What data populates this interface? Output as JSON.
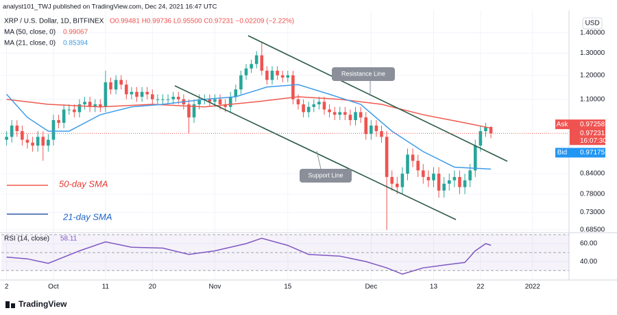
{
  "header": "analyst101_TWJ published on TradingView.com, Dec 24, 2021 16:47 UTC",
  "footer": "TradingView",
  "chart_data": [
    {
      "type": "candlestick",
      "symbol": "XRP / U.S. Dollar, 1D, BITFINEX",
      "ohlc_legend": "O0.99481 H0.99736 L0.95500 C0.97231 −0.02209 (−2.22%)",
      "currency": "USD",
      "log_scale": true,
      "grid": true,
      "up_color": "#26a69a",
      "down_color": "#ef5350",
      "xlim": [
        "2021-09-21",
        "2022-01-08"
      ],
      "xticks": [
        {
          "value": "2021-09-22",
          "label": "2"
        },
        {
          "value": "2021-10-01",
          "label": "Oct"
        },
        {
          "value": "2021-10-11",
          "label": "11"
        },
        {
          "value": "2021-10-20",
          "label": "20"
        },
        {
          "value": "2021-11-01",
          "label": "Nov"
        },
        {
          "value": "2021-11-15",
          "label": "15"
        },
        {
          "value": "2021-12-01",
          "label": "Dec"
        },
        {
          "value": "2021-12-13",
          "label": "13"
        },
        {
          "value": "2021-12-22",
          "label": "22"
        },
        {
          "value": "2022-01-01",
          "label": "2022"
        }
      ],
      "ylim": [
        0.68,
        1.5
      ],
      "yticks": [
        {
          "value": 1.4,
          "label": "1.40000"
        },
        {
          "value": 1.3,
          "label": "1.30000"
        },
        {
          "value": 1.2,
          "label": "1.20000"
        },
        {
          "value": 1.1,
          "label": "1.10000"
        },
        {
          "value": 0.84,
          "label": "0.84000"
        },
        {
          "value": 0.78,
          "label": "0.78000"
        },
        {
          "value": 0.73,
          "label": "0.73000"
        },
        {
          "value": 0.685,
          "label": "0.68500"
        }
      ],
      "x": [
        "2021-09-22",
        "2021-09-23",
        "2021-09-24",
        "2021-09-25",
        "2021-09-26",
        "2021-09-27",
        "2021-09-28",
        "2021-09-29",
        "2021-09-30",
        "2021-10-01",
        "2021-10-02",
        "2021-10-03",
        "2021-10-04",
        "2021-10-05",
        "2021-10-06",
        "2021-10-07",
        "2021-10-08",
        "2021-10-09",
        "2021-10-10",
        "2021-10-11",
        "2021-10-12",
        "2021-10-13",
        "2021-10-14",
        "2021-10-15",
        "2021-10-16",
        "2021-10-17",
        "2021-10-18",
        "2021-10-19",
        "2021-10-20",
        "2021-10-21",
        "2021-10-22",
        "2021-10-23",
        "2021-10-24",
        "2021-10-25",
        "2021-10-26",
        "2021-10-27",
        "2021-10-28",
        "2021-10-29",
        "2021-10-30",
        "2021-10-31",
        "2021-11-01",
        "2021-11-02",
        "2021-11-03",
        "2021-11-04",
        "2021-11-05",
        "2021-11-06",
        "2021-11-07",
        "2021-11-08",
        "2021-11-09",
        "2021-11-10",
        "2021-11-11",
        "2021-11-12",
        "2021-11-13",
        "2021-11-14",
        "2021-11-15",
        "2021-11-16",
        "2021-11-17",
        "2021-11-18",
        "2021-11-19",
        "2021-11-20",
        "2021-11-21",
        "2021-11-22",
        "2021-11-23",
        "2021-11-24",
        "2021-11-25",
        "2021-11-26",
        "2021-11-27",
        "2021-11-28",
        "2021-11-29",
        "2021-11-30",
        "2021-12-01",
        "2021-12-02",
        "2021-12-03",
        "2021-12-04",
        "2021-12-05",
        "2021-12-06",
        "2021-12-07",
        "2021-12-08",
        "2021-12-09",
        "2021-12-10",
        "2021-12-11",
        "2021-12-12",
        "2021-12-13",
        "2021-12-14",
        "2021-12-15",
        "2021-12-16",
        "2021-12-17",
        "2021-12-18",
        "2021-12-19",
        "2021-12-20",
        "2021-12-21",
        "2021-12-22",
        "2021-12-23",
        "2021-12-24"
      ],
      "open": [
        0.95,
        0.96,
        1.0,
        0.98,
        0.95,
        0.94,
        0.93,
        0.96,
        0.93,
        0.95,
        1.02,
        1.01,
        1.06,
        1.06,
        1.05,
        1.08,
        1.09,
        1.07,
        1.08,
        1.07,
        1.17,
        1.14,
        1.18,
        1.16,
        1.12,
        1.13,
        1.11,
        1.13,
        1.12,
        1.1,
        1.1,
        1.1,
        1.1,
        1.11,
        1.1,
        1.08,
        1.03,
        1.08,
        1.1,
        1.1,
        1.09,
        1.1,
        1.08,
        1.07,
        1.11,
        1.14,
        1.2,
        1.23,
        1.25,
        1.29,
        1.22,
        1.18,
        1.22,
        1.2,
        1.19,
        1.2,
        1.1,
        1.08,
        1.05,
        1.07,
        1.08,
        1.09,
        1.06,
        1.05,
        1.04,
        1.05,
        1.04,
        1.02,
        1.05,
        1.03,
        0.97,
        1.0,
        0.98,
        0.96,
        0.83,
        0.81,
        0.8,
        0.84,
        0.9,
        0.88,
        0.85,
        0.83,
        0.82,
        0.84,
        0.79,
        0.81,
        0.82,
        0.83,
        0.8,
        0.82,
        0.85,
        0.93,
        0.98,
        0.99481
      ],
      "high": [
        0.98,
        1.02,
        1.02,
        1.0,
        0.97,
        0.96,
        0.98,
        0.98,
        0.97,
        1.04,
        1.04,
        1.08,
        1.08,
        1.08,
        1.1,
        1.11,
        1.11,
        1.1,
        1.1,
        1.22,
        1.19,
        1.2,
        1.2,
        1.18,
        1.15,
        1.15,
        1.15,
        1.15,
        1.14,
        1.12,
        1.12,
        1.12,
        1.13,
        1.13,
        1.12,
        1.1,
        1.1,
        1.12,
        1.12,
        1.12,
        1.12,
        1.12,
        1.1,
        1.13,
        1.16,
        1.22,
        1.25,
        1.27,
        1.31,
        1.35,
        1.24,
        1.24,
        1.24,
        1.22,
        1.22,
        1.22,
        1.12,
        1.1,
        1.09,
        1.1,
        1.11,
        1.11,
        1.08,
        1.07,
        1.07,
        1.07,
        1.06,
        1.07,
        1.07,
        1.05,
        1.02,
        1.02,
        1.0,
        0.98,
        0.85,
        0.83,
        0.86,
        0.92,
        0.92,
        0.9,
        0.87,
        0.85,
        0.86,
        0.86,
        0.83,
        0.84,
        0.85,
        0.85,
        0.84,
        0.87,
        0.95,
        1.0,
        1.01,
        0.99736
      ],
      "low": [
        0.93,
        0.94,
        0.96,
        0.93,
        0.92,
        0.91,
        0.91,
        0.88,
        0.91,
        0.93,
        0.99,
        0.99,
        1.04,
        1.03,
        1.03,
        1.06,
        1.05,
        1.05,
        1.05,
        1.05,
        1.12,
        1.12,
        1.14,
        1.1,
        1.1,
        1.09,
        1.09,
        1.1,
        1.08,
        1.08,
        1.08,
        1.08,
        1.08,
        1.08,
        1.06,
        0.97,
        1.01,
        1.06,
        1.08,
        1.07,
        1.07,
        1.06,
        1.05,
        1.05,
        1.09,
        1.12,
        1.18,
        1.21,
        1.23,
        1.2,
        1.16,
        1.16,
        1.18,
        1.17,
        1.17,
        1.08,
        1.06,
        1.03,
        1.03,
        1.05,
        1.06,
        1.04,
        1.03,
        1.02,
        1.02,
        1.02,
        1.0,
        1.0,
        1.01,
        0.95,
        0.95,
        0.96,
        0.94,
        0.685,
        0.79,
        0.78,
        0.78,
        0.82,
        0.86,
        0.83,
        0.81,
        0.8,
        0.8,
        0.77,
        0.77,
        0.79,
        0.8,
        0.78,
        0.78,
        0.8,
        0.83,
        0.91,
        0.96,
        0.955
      ],
      "close": [
        0.96,
        1.0,
        0.98,
        0.95,
        0.94,
        0.93,
        0.96,
        0.93,
        0.95,
        1.02,
        1.01,
        1.06,
        1.06,
        1.05,
        1.08,
        1.09,
        1.07,
        1.08,
        1.07,
        1.17,
        1.14,
        1.18,
        1.16,
        1.12,
        1.13,
        1.11,
        1.13,
        1.12,
        1.1,
        1.1,
        1.1,
        1.1,
        1.11,
        1.1,
        1.08,
        1.03,
        1.08,
        1.1,
        1.1,
        1.09,
        1.1,
        1.08,
        1.07,
        1.11,
        1.14,
        1.2,
        1.23,
        1.25,
        1.29,
        1.22,
        1.18,
        1.22,
        1.2,
        1.19,
        1.2,
        1.1,
        1.08,
        1.05,
        1.07,
        1.08,
        1.09,
        1.06,
        1.05,
        1.04,
        1.05,
        1.04,
        1.02,
        1.05,
        1.03,
        0.97,
        1.0,
        0.98,
        0.96,
        0.83,
        0.81,
        0.8,
        0.84,
        0.9,
        0.88,
        0.85,
        0.83,
        0.82,
        0.84,
        0.79,
        0.81,
        0.82,
        0.83,
        0.8,
        0.82,
        0.85,
        0.93,
        0.98,
        0.995,
        0.97231
      ],
      "series": [
        {
          "name": "MA (50, close, 0)",
          "color": "#f0584c",
          "x": [
            "2021-09-22",
            "2021-09-30",
            "2021-10-10",
            "2021-10-20",
            "2021-10-30",
            "2021-11-09",
            "2021-11-17",
            "2021-11-25",
            "2021-12-03",
            "2021-12-11",
            "2021-12-19",
            "2021-12-24"
          ],
          "values": [
            1.1,
            1.08,
            1.07,
            1.08,
            1.07,
            1.09,
            1.11,
            1.1,
            1.08,
            1.04,
            1.01,
            0.99067
          ]
        },
        {
          "name": "MA (21, close, 0)",
          "color": "#3d9be9",
          "x": [
            "2021-09-22",
            "2021-09-26",
            "2021-09-30",
            "2021-10-04",
            "2021-10-10",
            "2021-10-16",
            "2021-10-22",
            "2021-10-30",
            "2021-11-05",
            "2021-11-11",
            "2021-11-17",
            "2021-11-23",
            "2021-11-29",
            "2021-12-05",
            "2021-12-11",
            "2021-12-17",
            "2021-12-24"
          ],
          "values": [
            1.12,
            1.03,
            0.98,
            0.98,
            1.04,
            1.07,
            1.08,
            1.1,
            1.11,
            1.15,
            1.16,
            1.12,
            1.08,
            0.98,
            0.91,
            0.86,
            0.85394
          ]
        }
      ],
      "price_tags": [
        {
          "label": "Ask",
          "value": 0.97258,
          "color": "#ef5350"
        },
        {
          "value": 0.97231,
          "countdown": "16:07:30",
          "color": "#ef5350"
        },
        {
          "label": "Bid",
          "value": 0.97175,
          "color": "#2196f3"
        }
      ],
      "annotations": [
        "Resistance Line",
        "Support Line",
        "50-day SMA",
        "21-day SMA"
      ]
    },
    {
      "type": "line",
      "ylim": [
        24,
        71.5
      ],
      "yticks": [
        {
          "value": 60,
          "label": "60.00"
        },
        {
          "value": 40,
          "label": "40.00"
        }
      ],
      "levels": [
        70,
        50,
        30
      ],
      "series": [
        {
          "name": "RSI (14, close)",
          "color": "#7e57c2",
          "x": [
            "2021-09-22",
            "2021-09-26",
            "2021-09-30",
            "2021-10-06",
            "2021-10-11",
            "2021-10-16",
            "2021-10-22",
            "2021-10-27",
            "2021-11-01",
            "2021-11-07",
            "2021-11-10",
            "2021-11-15",
            "2021-11-19",
            "2021-11-25",
            "2021-11-30",
            "2021-12-04",
            "2021-12-07",
            "2021-12-11",
            "2021-12-15",
            "2021-12-19",
            "2021-12-21",
            "2021-12-23",
            "2021-12-24"
          ],
          "values": [
            45,
            43,
            38,
            52,
            62,
            56,
            55,
            48,
            52,
            60,
            66,
            58,
            48,
            46,
            40,
            33,
            26,
            33,
            36,
            39,
            52,
            60,
            58.11
          ]
        }
      ]
    }
  ]
}
